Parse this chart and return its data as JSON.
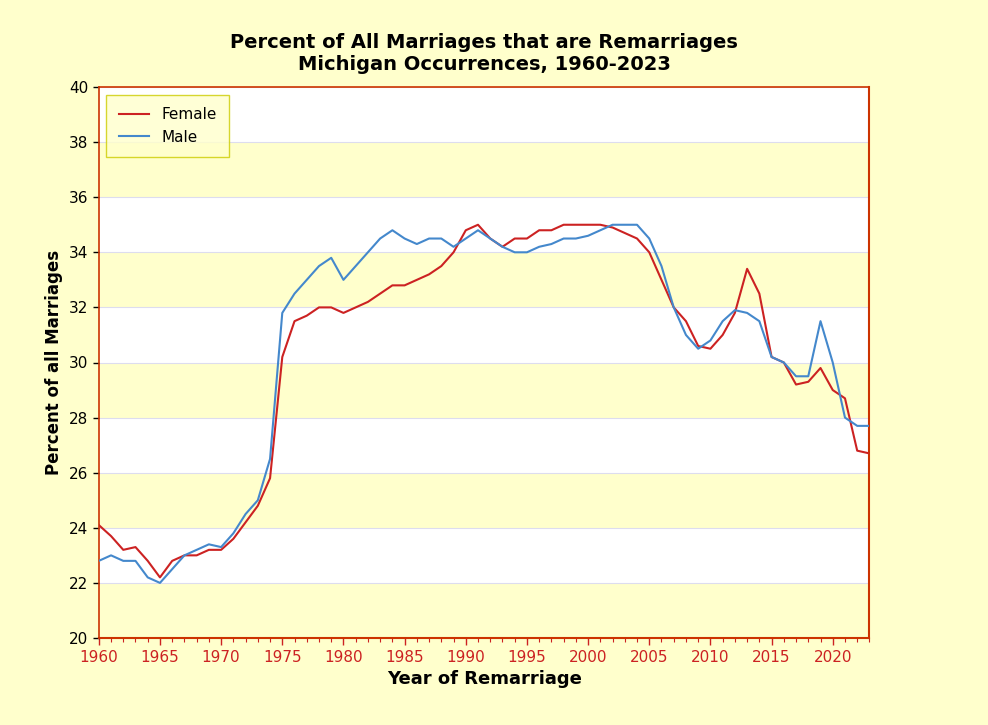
{
  "title_line1": "Percent of All Marriages that are Remarriages",
  "title_line2": "Michigan Occurrences, 1960-2023",
  "xlabel": "Year of Remarriage",
  "ylabel": "Percent of all Marriages",
  "ylim": [
    20,
    40
  ],
  "xlim": [
    1960,
    2023
  ],
  "yticks": [
    20,
    22,
    24,
    26,
    28,
    30,
    32,
    34,
    36,
    38,
    40
  ],
  "xticks": [
    1960,
    1965,
    1970,
    1975,
    1980,
    1985,
    1990,
    1995,
    2000,
    2005,
    2010,
    2015,
    2020
  ],
  "background_outer": "#ffffcc",
  "background_plot": "#ffffff",
  "stripe_color": "#ffffcc",
  "female_color": "#cc2222",
  "male_color": "#4488cc",
  "grid_color": "#ddddee",
  "spine_color": "#cc3300",
  "years": [
    1960,
    1961,
    1962,
    1963,
    1964,
    1965,
    1966,
    1967,
    1968,
    1969,
    1970,
    1971,
    1972,
    1973,
    1974,
    1975,
    1976,
    1977,
    1978,
    1979,
    1980,
    1981,
    1982,
    1983,
    1984,
    1985,
    1986,
    1987,
    1988,
    1989,
    1990,
    1991,
    1992,
    1993,
    1994,
    1995,
    1996,
    1997,
    1998,
    1999,
    2000,
    2001,
    2002,
    2003,
    2004,
    2005,
    2006,
    2007,
    2008,
    2009,
    2010,
    2011,
    2012,
    2013,
    2014,
    2015,
    2016,
    2017,
    2018,
    2019,
    2020,
    2021,
    2022,
    2023
  ],
  "female": [
    24.1,
    23.7,
    23.2,
    23.3,
    22.8,
    22.2,
    22.8,
    23.0,
    23.0,
    23.2,
    23.2,
    23.6,
    24.2,
    24.8,
    25.8,
    30.2,
    31.5,
    31.7,
    32.0,
    32.0,
    31.8,
    32.0,
    32.2,
    32.5,
    32.8,
    32.8,
    33.0,
    33.2,
    33.5,
    34.0,
    34.8,
    35.0,
    34.5,
    34.2,
    34.5,
    34.5,
    34.8,
    34.8,
    35.0,
    35.0,
    35.0,
    35.0,
    34.9,
    34.7,
    34.5,
    34.0,
    33.0,
    32.0,
    31.5,
    30.6,
    30.5,
    31.0,
    31.8,
    33.4,
    32.5,
    30.2,
    30.0,
    29.2,
    29.3,
    29.8,
    29.0,
    28.7,
    26.8,
    26.7
  ],
  "male": [
    22.8,
    23.0,
    22.8,
    22.8,
    22.2,
    22.0,
    22.5,
    23.0,
    23.2,
    23.4,
    23.3,
    23.8,
    24.5,
    25.0,
    26.5,
    31.8,
    32.5,
    33.0,
    33.5,
    33.8,
    33.0,
    33.5,
    34.0,
    34.5,
    34.8,
    34.5,
    34.3,
    34.5,
    34.5,
    34.2,
    34.5,
    34.8,
    34.5,
    34.2,
    34.0,
    34.0,
    34.2,
    34.3,
    34.5,
    34.5,
    34.6,
    34.8,
    35.0,
    35.0,
    35.0,
    34.5,
    33.5,
    32.0,
    31.0,
    30.5,
    30.8,
    31.5,
    31.9,
    31.8,
    31.5,
    30.2,
    30.0,
    29.5,
    29.5,
    31.5,
    30.0,
    28.0,
    27.7,
    27.7
  ]
}
